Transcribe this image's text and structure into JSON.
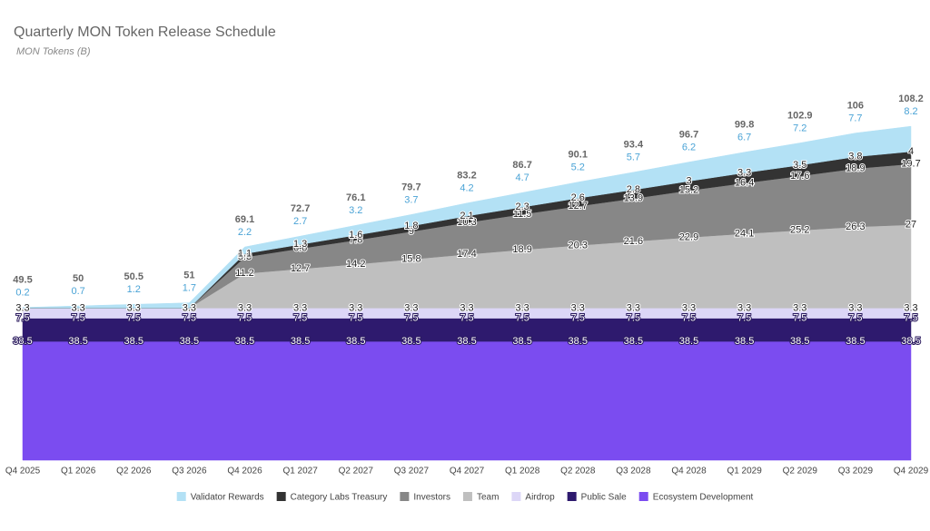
{
  "chart_data": {
    "type": "stacked-area",
    "title": "Quarterly MON Token Release Schedule",
    "subtitle": "MON Tokens (B)",
    "categories": [
      "Q4 2025",
      "Q1 2026",
      "Q2 2026",
      "Q3 2026",
      "Q4 2026",
      "Q1 2027",
      "Q2 2027",
      "Q3 2027",
      "Q4 2027",
      "Q1 2028",
      "Q2 2028",
      "Q3 2028",
      "Q4 2028",
      "Q1 2029",
      "Q2 2029",
      "Q3 2029",
      "Q4 2029"
    ],
    "series": [
      {
        "name": "Ecosystem Development",
        "color": "#7b4cf0",
        "values": [
          38.5,
          38.5,
          38.5,
          38.5,
          38.5,
          38.5,
          38.5,
          38.5,
          38.5,
          38.5,
          38.5,
          38.5,
          38.5,
          38.5,
          38.5,
          38.5,
          38.5
        ]
      },
      {
        "name": "Public Sale",
        "color": "#2e1a6e",
        "values": [
          7.5,
          7.5,
          7.5,
          7.5,
          7.5,
          7.5,
          7.5,
          7.5,
          7.5,
          7.5,
          7.5,
          7.5,
          7.5,
          7.5,
          7.5,
          7.5,
          7.5
        ]
      },
      {
        "name": "Airdrop",
        "color": "#dcd6f7",
        "values": [
          3.3,
          3.3,
          3.3,
          3.3,
          3.3,
          3.3,
          3.3,
          3.3,
          3.3,
          3.3,
          3.3,
          3.3,
          3.3,
          3.3,
          3.3,
          3.3,
          3.3
        ]
      },
      {
        "name": "Team",
        "color": "#bfbfbf",
        "values": [
          0,
          0,
          0,
          0,
          11.2,
          12.7,
          14.2,
          15.8,
          17.4,
          18.9,
          20.3,
          21.6,
          22.9,
          24.1,
          25.2,
          26.3,
          27.0
        ]
      },
      {
        "name": "Investors",
        "color": "#878787",
        "values": [
          0,
          0,
          0,
          0,
          5.3,
          6.6,
          7.8,
          9.0,
          10.3,
          11.5,
          12.7,
          13.9,
          15.2,
          16.4,
          17.6,
          18.9,
          19.7
        ]
      },
      {
        "name": "Category Labs Treasury",
        "color": "#333333",
        "values": [
          0,
          0,
          0,
          0,
          1.1,
          1.3,
          1.6,
          1.8,
          2.1,
          2.3,
          2.6,
          2.8,
          3.0,
          3.3,
          3.5,
          3.8,
          4.0
        ]
      },
      {
        "name": "Validator Rewards",
        "color": "#b3e1f5",
        "values": [
          0.2,
          0.7,
          1.2,
          1.7,
          2.2,
          2.7,
          3.2,
          3.7,
          4.2,
          4.7,
          5.2,
          5.7,
          6.2,
          6.7,
          7.2,
          7.7,
          8.2
        ]
      }
    ],
    "totals": [
      49.5,
      50.0,
      50.5,
      51.0,
      69.1,
      72.7,
      76.1,
      79.7,
      83.2,
      86.7,
      90.1,
      93.4,
      96.7,
      99.8,
      102.9,
      106.0,
      108.2
    ],
    "ylim": [
      0,
      125
    ]
  }
}
